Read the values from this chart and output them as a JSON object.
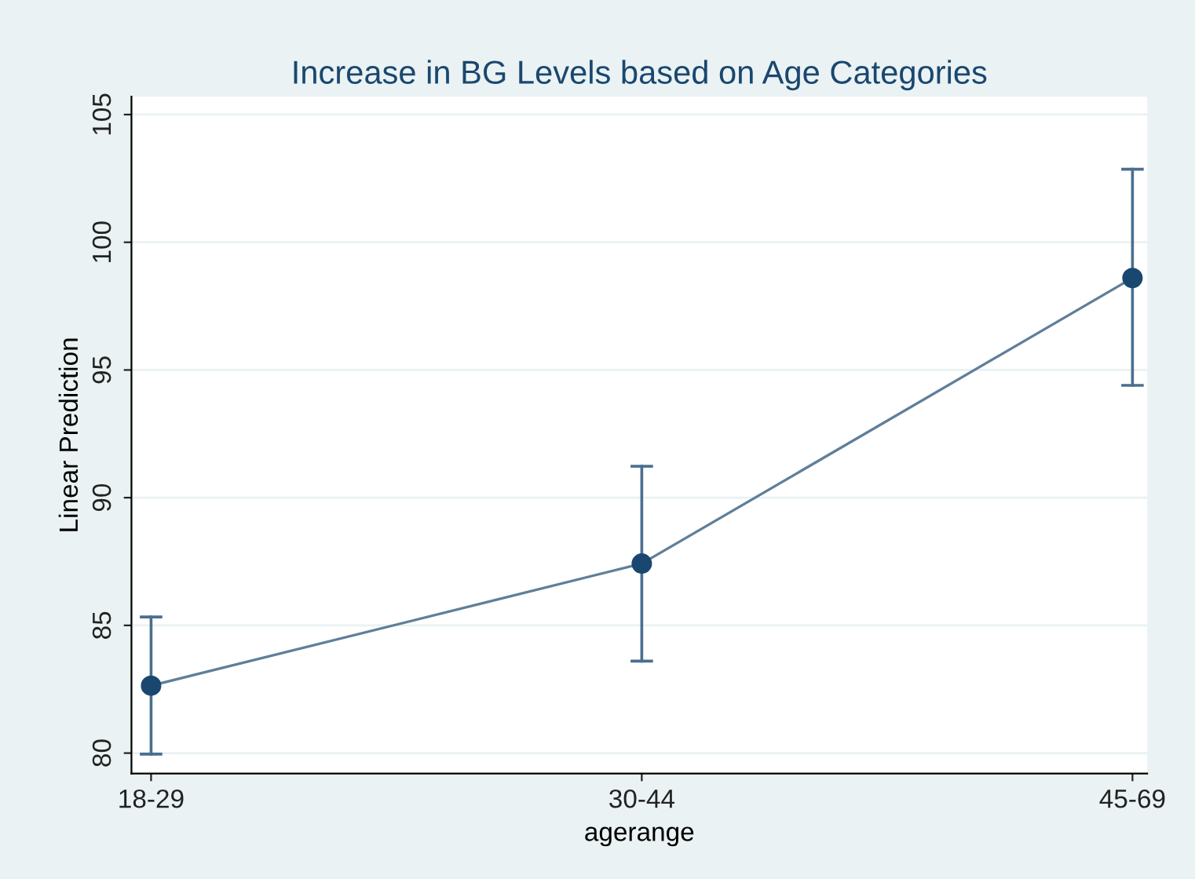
{
  "chart_data": {
    "type": "line",
    "title": "Increase in BG Levels based on Age Categories",
    "xlabel": "agerange",
    "ylabel": "Linear Prediction",
    "categories": [
      "18-29",
      "30-44",
      "45-69"
    ],
    "series": [
      {
        "color": "#1a476f",
        "values": [
          82.64,
          87.42,
          98.6
        ],
        "errors": [
          [
            79.96,
            85.33
          ],
          [
            83.6,
            91.23
          ],
          [
            94.4,
            102.86
          ]
        ]
      }
    ],
    "ylim": [
      79.2,
      105.7
    ],
    "yticks": [
      80,
      85,
      90,
      95,
      100,
      105
    ],
    "grid": "y",
    "marker": "circle",
    "line_style": "solid",
    "legend": false
  }
}
